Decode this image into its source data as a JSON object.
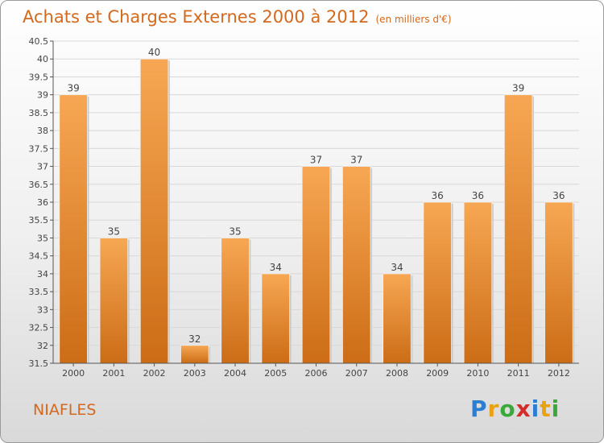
{
  "title": "Achats et Charges Externes 2000 à 2012",
  "subtitle": "(en milliers d'€)",
  "commune": "NIAFLES",
  "logo": {
    "letters": [
      "P",
      "r",
      "o",
      "x",
      "i",
      "t",
      "i"
    ],
    "colors": [
      "#2a7fd4",
      "#e8a215",
      "#3aa83a",
      "#d62b2b",
      "#2a7fd4",
      "#e8a215",
      "#3aa83a"
    ]
  },
  "colors": {
    "title": "#d2691e",
    "bar_top": "#f7a753",
    "bar_bottom": "#cc6c16",
    "grid": "#d8d8d8"
  },
  "chart_data": {
    "type": "bar",
    "categories": [
      "2000",
      "2001",
      "2002",
      "2003",
      "2004",
      "2005",
      "2006",
      "2007",
      "2008",
      "2009",
      "2010",
      "2011",
      "2012"
    ],
    "values": [
      39,
      35,
      40,
      32,
      35,
      34,
      37,
      37,
      34,
      36,
      36,
      39,
      36
    ],
    "data_labels": [
      "39",
      "35",
      "40",
      "32",
      "35",
      "34",
      "37",
      "37",
      "34",
      "36",
      "36",
      "39",
      "36"
    ],
    "yticks": [
      "31.5",
      "32",
      "32.5",
      "33",
      "33.5",
      "34",
      "34.5",
      "35",
      "35.5",
      "36",
      "36.5",
      "37",
      "37.5",
      "38",
      "38.5",
      "39",
      "39.5",
      "40",
      "40.5"
    ],
    "ylim": [
      31.5,
      40.5
    ],
    "grid": true,
    "legend": "none"
  }
}
